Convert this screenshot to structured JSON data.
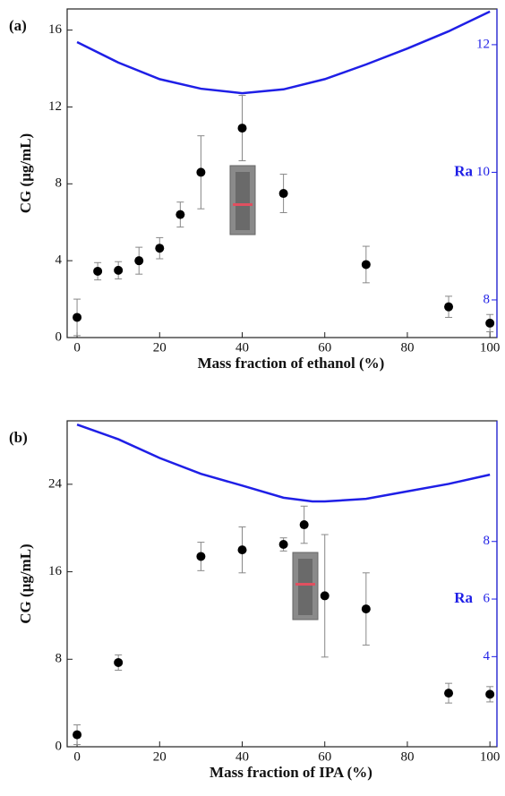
{
  "chart_data": [
    {
      "type": "scatter",
      "label": "(a)",
      "xlabel": "Mass fraction of ethanol (%)",
      "ylabel": "CG (μg/mL)",
      "y2label": "Ra",
      "xlim": [
        -2.4,
        101.7
      ],
      "xticks": [
        0,
        20,
        40,
        60,
        80,
        100
      ],
      "ylim": [
        0,
        17.1
      ],
      "yticks": [
        0,
        4,
        8,
        12,
        16
      ],
      "y2lim": [
        7.41,
        12.56
      ],
      "y2ticks": [
        8,
        10,
        12
      ],
      "series": [
        {
          "color": "#000000",
          "x": [
            0,
            5,
            10,
            15,
            20,
            25,
            30,
            40,
            50,
            70,
            90,
            100
          ],
          "values": [
            1.05,
            3.45,
            3.5,
            4.0,
            4.65,
            6.4,
            8.6,
            10.9,
            7.5,
            3.8,
            1.6,
            0.75
          ],
          "errors": [
            0.95,
            0.45,
            0.45,
            0.7,
            0.55,
            0.65,
            1.9,
            1.7,
            1.0,
            0.95,
            0.55,
            0.45
          ]
        },
        {
          "type": "line",
          "axis": "y2",
          "color": "#1f1fe6",
          "x": [
            0,
            10,
            20,
            30,
            40,
            50,
            60,
            70,
            80,
            90,
            100
          ],
          "values": [
            12.04,
            11.72,
            11.46,
            11.31,
            11.24,
            11.3,
            11.46,
            11.69,
            11.94,
            12.21,
            12.52
          ]
        }
      ]
    },
    {
      "type": "scatter",
      "label": "(b)",
      "xlabel": "Mass fraction of IPA (%)",
      "ylabel": "CG (μg/mL)",
      "y2label": "Ra",
      "xlim": [
        -2.4,
        101.7
      ],
      "xticks": [
        0,
        20,
        40,
        60,
        80,
        100
      ],
      "ylim": [
        0,
        29.8
      ],
      "yticks": [
        0,
        8,
        16,
        24
      ],
      "y2lim": [
        0.87,
        12.19
      ],
      "y2ticks": [
        4,
        6,
        8
      ],
      "series": [
        {
          "color": "#000000",
          "x": [
            0,
            10,
            30,
            40,
            50,
            55,
            60,
            70,
            90,
            100
          ],
          "values": [
            1.1,
            7.7,
            17.4,
            18.0,
            18.5,
            20.3,
            13.8,
            12.6,
            4.9,
            4.8
          ],
          "errors": [
            0.9,
            0.7,
            1.3,
            2.1,
            0.6,
            1.7,
            5.6,
            3.3,
            0.9,
            0.7
          ]
        },
        {
          "type": "line",
          "axis": "y2",
          "color": "#1f1fe6",
          "x": [
            0,
            10,
            20,
            30,
            40,
            50,
            57,
            60,
            70,
            80,
            90,
            100
          ],
          "values": [
            12.06,
            11.55,
            10.9,
            10.35,
            9.94,
            9.52,
            9.39,
            9.39,
            9.48,
            9.74,
            10.0,
            10.32
          ]
        }
      ]
    }
  ]
}
